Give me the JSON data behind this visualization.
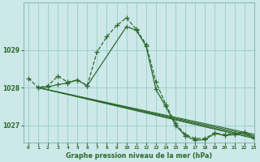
{
  "background_color": "#cce8e8",
  "grid_color": "#99cccc",
  "line_color": "#2d6a2d",
  "title": "Graphe pression niveau de la mer (hPa)",
  "xlim": [
    -0.5,
    23
  ],
  "ylim": [
    1026.55,
    1030.25
  ],
  "yticks": [
    1027,
    1028,
    1029
  ],
  "xticks": [
    0,
    1,
    2,
    3,
    4,
    5,
    6,
    7,
    8,
    9,
    10,
    11,
    12,
    13,
    14,
    15,
    16,
    17,
    18,
    19,
    20,
    21,
    22,
    23
  ],
  "series": [
    {
      "x": [
        0,
        1,
        2,
        3,
        4,
        5,
        6,
        7,
        8,
        9,
        10,
        11,
        12,
        13,
        14,
        15,
        16,
        17,
        18,
        19,
        20,
        21,
        22,
        23
      ],
      "y": [
        1028.25,
        1028.0,
        1028.05,
        1028.3,
        1028.15,
        1028.2,
        1028.05,
        1028.95,
        1029.35,
        1029.65,
        1029.85,
        1029.55,
        1029.15,
        1028.15,
        1027.55,
        1027.05,
        1026.75,
        1026.65,
        1026.65,
        1026.8,
        1026.75,
        1026.78,
        1026.82,
        1026.7
      ],
      "linestyle": "--",
      "linewidth": 0.9,
      "marker": "+",
      "markersize": 4
    },
    {
      "x": [
        1,
        2,
        3,
        4,
        5,
        6,
        10,
        11,
        12,
        13,
        14,
        15,
        16,
        17,
        18,
        19,
        20,
        21,
        22,
        23
      ],
      "y": [
        1028.0,
        1028.02,
        1028.08,
        1028.12,
        1028.2,
        1028.05,
        1029.62,
        1029.52,
        1029.1,
        1027.95,
        1027.5,
        1027.0,
        1026.72,
        1026.6,
        1026.62,
        1026.78,
        1026.73,
        1026.75,
        1026.8,
        1026.65
      ],
      "linestyle": "-",
      "linewidth": 0.9,
      "marker": "+",
      "markersize": 4
    },
    {
      "x": [
        1,
        23
      ],
      "y": [
        1028.0,
        1026.65
      ],
      "linestyle": "-",
      "linewidth": 0.8,
      "marker": null,
      "markersize": 0
    },
    {
      "x": [
        1,
        23
      ],
      "y": [
        1028.0,
        1026.68
      ],
      "linestyle": "-",
      "linewidth": 0.8,
      "marker": null,
      "markersize": 0
    },
    {
      "x": [
        1,
        23
      ],
      "y": [
        1028.0,
        1026.72
      ],
      "linestyle": "-",
      "linewidth": 0.8,
      "marker": null,
      "markersize": 0
    },
    {
      "x": [
        1,
        23
      ],
      "y": [
        1028.0,
        1026.76
      ],
      "linestyle": "-",
      "linewidth": 0.8,
      "marker": null,
      "markersize": 0
    }
  ]
}
